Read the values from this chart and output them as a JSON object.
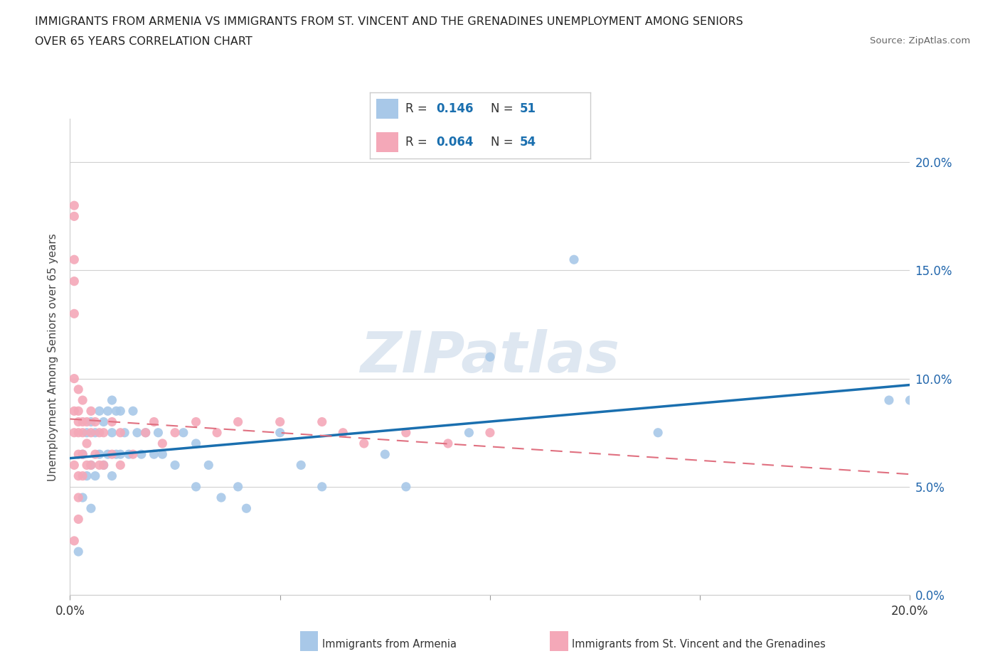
{
  "title_line1": "IMMIGRANTS FROM ARMENIA VS IMMIGRANTS FROM ST. VINCENT AND THE GRENADINES UNEMPLOYMENT AMONG SENIORS",
  "title_line2": "OVER 65 YEARS CORRELATION CHART",
  "source_text": "Source: ZipAtlas.com",
  "ylabel": "Unemployment Among Seniors over 65 years",
  "xlim": [
    0.0,
    0.2
  ],
  "ylim": [
    0.0,
    0.22
  ],
  "yticks": [
    0.0,
    0.05,
    0.1,
    0.15,
    0.2
  ],
  "xticks": [
    0.0,
    0.05,
    0.1,
    0.15,
    0.2
  ],
  "armenia_color": "#a8c8e8",
  "stvincent_color": "#f4a8b8",
  "armenia_line_color": "#1a6faf",
  "stvincent_line_color": "#e07080",
  "R_armenia": 0.146,
  "N_armenia": 51,
  "R_stvincent": 0.064,
  "N_stvincent": 54,
  "watermark": "ZIPatlas",
  "armenia_x": [
    0.002,
    0.003,
    0.003,
    0.004,
    0.004,
    0.005,
    0.005,
    0.005,
    0.006,
    0.006,
    0.007,
    0.007,
    0.008,
    0.008,
    0.009,
    0.009,
    0.01,
    0.01,
    0.01,
    0.011,
    0.011,
    0.012,
    0.012,
    0.013,
    0.014,
    0.015,
    0.016,
    0.017,
    0.018,
    0.02,
    0.021,
    0.022,
    0.025,
    0.027,
    0.03,
    0.03,
    0.033,
    0.036,
    0.04,
    0.042,
    0.05,
    0.055,
    0.06,
    0.075,
    0.08,
    0.095,
    0.1,
    0.12,
    0.14,
    0.195,
    0.2
  ],
  "armenia_y": [
    0.02,
    0.065,
    0.045,
    0.075,
    0.055,
    0.08,
    0.06,
    0.04,
    0.075,
    0.055,
    0.085,
    0.065,
    0.08,
    0.06,
    0.085,
    0.065,
    0.09,
    0.075,
    0.055,
    0.085,
    0.065,
    0.085,
    0.065,
    0.075,
    0.065,
    0.085,
    0.075,
    0.065,
    0.075,
    0.065,
    0.075,
    0.065,
    0.06,
    0.075,
    0.07,
    0.05,
    0.06,
    0.045,
    0.05,
    0.04,
    0.075,
    0.06,
    0.05,
    0.065,
    0.05,
    0.075,
    0.11,
    0.155,
    0.075,
    0.09,
    0.09
  ],
  "stvincent_x": [
    0.001,
    0.001,
    0.001,
    0.001,
    0.001,
    0.001,
    0.001,
    0.001,
    0.001,
    0.001,
    0.002,
    0.002,
    0.002,
    0.002,
    0.002,
    0.002,
    0.002,
    0.002,
    0.003,
    0.003,
    0.003,
    0.003,
    0.003,
    0.004,
    0.004,
    0.004,
    0.005,
    0.005,
    0.005,
    0.006,
    0.006,
    0.007,
    0.007,
    0.008,
    0.008,
    0.01,
    0.01,
    0.012,
    0.012,
    0.015,
    0.018,
    0.02,
    0.022,
    0.025,
    0.03,
    0.035,
    0.04,
    0.05,
    0.06,
    0.065,
    0.07,
    0.08,
    0.09,
    0.1
  ],
  "stvincent_y": [
    0.18,
    0.175,
    0.155,
    0.145,
    0.13,
    0.1,
    0.085,
    0.075,
    0.06,
    0.025,
    0.095,
    0.085,
    0.08,
    0.075,
    0.065,
    0.055,
    0.045,
    0.035,
    0.09,
    0.08,
    0.075,
    0.065,
    0.055,
    0.08,
    0.07,
    0.06,
    0.085,
    0.075,
    0.06,
    0.08,
    0.065,
    0.075,
    0.06,
    0.075,
    0.06,
    0.08,
    0.065,
    0.075,
    0.06,
    0.065,
    0.075,
    0.08,
    0.07,
    0.075,
    0.08,
    0.075,
    0.08,
    0.08,
    0.08,
    0.075,
    0.07,
    0.075,
    0.07,
    0.075
  ]
}
